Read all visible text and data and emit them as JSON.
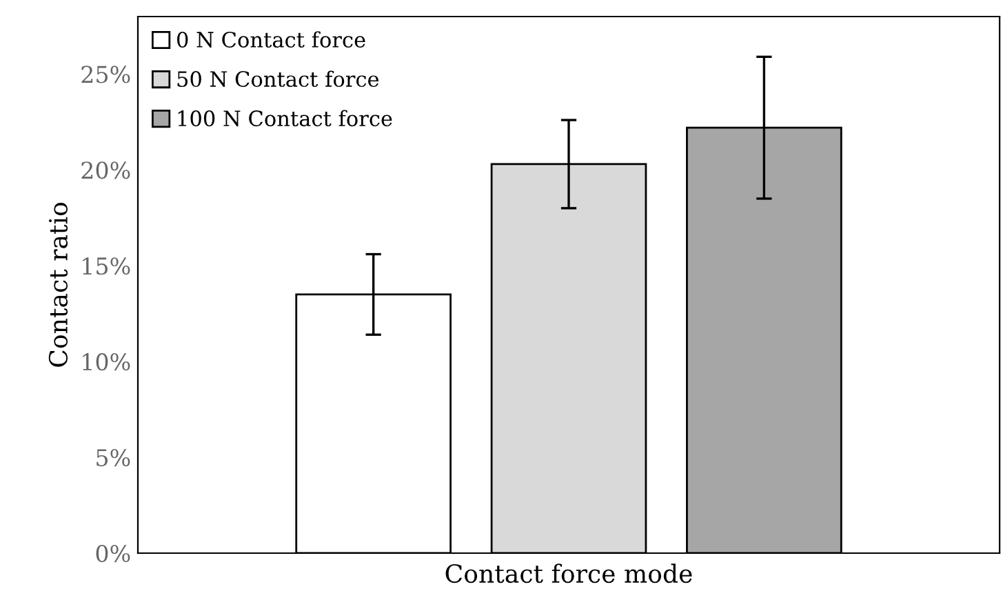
{
  "chart_data": {
    "type": "bar",
    "xlabel": "Contact force mode",
    "ylabel": "Contact ratio",
    "categories": [
      null
    ],
    "series": [
      {
        "name": "0 N Contact force",
        "color": "#ffffff",
        "values": [
          13.5
        ],
        "errors": [
          2.1
        ]
      },
      {
        "name": "50 N Contact force",
        "color": "#d9d9d9",
        "values": [
          20.3
        ],
        "errors": [
          2.3
        ]
      },
      {
        "name": "100 N Contact force",
        "color": "#a6a6a6",
        "values": [
          22.2
        ],
        "errors": [
          3.7
        ]
      }
    ],
    "ylim": [
      0,
      28
    ],
    "yticks": [
      {
        "value": 0,
        "label": "0%"
      },
      {
        "value": 5,
        "label": "5%"
      },
      {
        "value": 10,
        "label": "10%"
      },
      {
        "value": 15,
        "label": "15%"
      },
      {
        "value": 20,
        "label": "20%"
      },
      {
        "value": 25,
        "label": "25%"
      }
    ],
    "grid": false,
    "legend": "top left"
  }
}
